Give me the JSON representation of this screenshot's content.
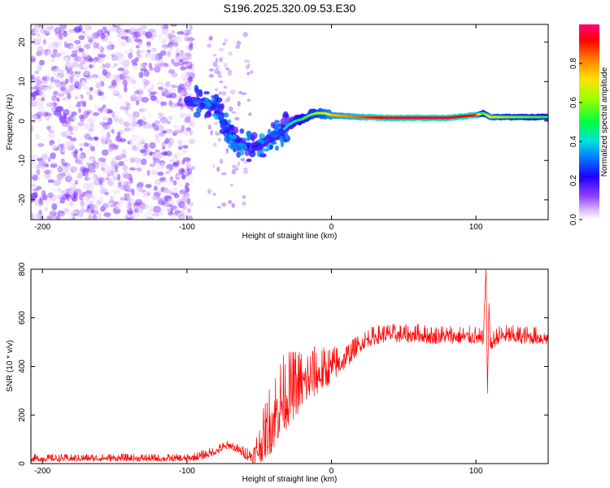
{
  "title": "S196.2025.320.09.53.E30",
  "chart_data": [
    {
      "type": "heatmap",
      "name": "spectrogram",
      "xlabel": "Height of straight line (km)",
      "ylabel": "Frequency (Hz)",
      "xlim": [
        -208,
        150
      ],
      "ylim": [
        -25,
        24.5
      ],
      "xticks": [
        -200,
        -100,
        0,
        100
      ],
      "xtick_labels": [
        "-200",
        "-100",
        "0",
        "100"
      ],
      "yticks": [
        -20,
        -10,
        0,
        10,
        20
      ],
      "ytick_labels": [
        "-20",
        "-10",
        "0",
        "10",
        "20"
      ],
      "colorbar": {
        "label": "Normalized spectral amplitude",
        "range": [
          0,
          1
        ],
        "ticks": [
          0.0,
          0.2,
          0.4,
          0.6,
          0.8
        ],
        "tick_labels": [
          "0.0",
          "0.2",
          "0.4",
          "0.6",
          "0.8"
        ],
        "colormap": "rainbow",
        "colors": [
          "#ffffff",
          "#c8a0ff",
          "#8000ff",
          "#0000ff",
          "#00c0ff",
          "#00ff60",
          "#c0ff00",
          "#ffff00",
          "#ff8000",
          "#ff0000",
          "#ff00c0"
        ]
      },
      "noise_region_x": [
        -208,
        -100
      ],
      "signal_trace": {
        "x": [
          -100,
          -90,
          -80,
          -75,
          -70,
          -65,
          -60,
          -55,
          -50,
          -45,
          -40,
          -35,
          -30,
          -25,
          -20,
          -15,
          -10,
          -5,
          0,
          20,
          40,
          60,
          80,
          100,
          105,
          110,
          120,
          150
        ],
        "freq": [
          5,
          5,
          3.5,
          0,
          -3,
          -5,
          -6,
          -7,
          -6,
          -5,
          -4,
          -3,
          -1,
          0,
          0.5,
          1.5,
          2,
          2,
          1.5,
          1,
          0.8,
          0.8,
          0.8,
          1.5,
          2,
          1,
          1,
          1
        ],
        "amplitude": [
          0.25,
          0.3,
          0.3,
          0.3,
          0.25,
          0.25,
          0.25,
          0.2,
          0.25,
          0.3,
          0.3,
          0.35,
          0.4,
          0.45,
          0.5,
          0.55,
          0.6,
          0.65,
          0.75,
          0.85,
          0.95,
          0.95,
          0.95,
          0.9,
          0.5,
          0.7,
          0.6,
          0.5
        ]
      }
    },
    {
      "type": "line",
      "name": "snr",
      "xlabel": "Height of straight line (km)",
      "ylabel": "SNR (10 * v/v)",
      "xlim": [
        -208,
        150
      ],
      "ylim": [
        0,
        800
      ],
      "xticks": [
        -200,
        -100,
        0,
        100
      ],
      "xtick_labels": [
        "-200",
        "-100",
        "0",
        "100"
      ],
      "yticks": [
        0,
        200,
        400,
        600,
        800
      ],
      "ytick_labels": [
        "0",
        "200",
        "400",
        "600",
        "800"
      ],
      "color": "#ff0000",
      "series": [
        {
          "name": "SNR",
          "x": [
            -208,
            -180,
            -150,
            -120,
            -100,
            -90,
            -80,
            -75,
            -70,
            -65,
            -60,
            -55,
            -50,
            -45,
            -40,
            -35,
            -30,
            -25,
            -20,
            -15,
            -10,
            -5,
            0,
            5,
            10,
            15,
            20,
            25,
            30,
            40,
            50,
            60,
            70,
            80,
            90,
            100,
            105,
            107,
            108,
            109,
            110,
            112,
            115,
            120,
            130,
            140,
            150
          ],
          "y": [
            20,
            20,
            22,
            20,
            20,
            30,
            50,
            65,
            75,
            55,
            40,
            30,
            60,
            120,
            180,
            240,
            270,
            300,
            320,
            340,
            360,
            370,
            390,
            410,
            430,
            460,
            490,
            510,
            520,
            530,
            525,
            530,
            520,
            525,
            520,
            520,
            500,
            800,
            290,
            660,
            480,
            500,
            520,
            525,
            520,
            520,
            515
          ],
          "noise_amplitude": [
            12,
            12,
            12,
            12,
            12,
            15,
            15,
            15,
            15,
            15,
            20,
            30,
            60,
            100,
            130,
            130,
            120,
            110,
            100,
            90,
            80,
            70,
            60,
            50,
            40,
            35,
            30,
            30,
            30,
            30,
            30,
            30,
            30,
            30,
            30,
            30,
            30,
            0,
            0,
            0,
            30,
            30,
            30,
            30,
            30,
            30,
            30
          ]
        }
      ]
    }
  ]
}
